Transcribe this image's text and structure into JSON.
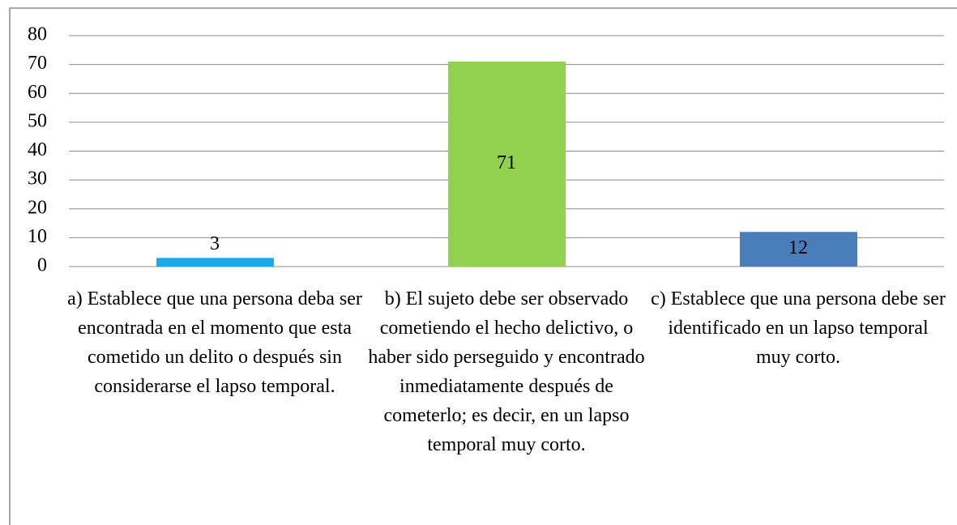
{
  "chart_data": {
    "type": "bar",
    "categories": [
      "a) Establece que una persona deba ser encontrada en el momento que esta cometido un delito o después sin considerarse el lapso temporal.",
      "b) El sujeto debe ser observado cometiendo el hecho delictivo, o haber sido perseguido y encontrado inmediatamente después de cometerlo; es decir, en un lapso temporal muy corto.",
      "c) Establece que una persona debe ser identificado en un lapso temporal muy corto."
    ],
    "values": [
      3,
      71,
      12
    ],
    "colors": [
      "#1aaae8",
      "#92d050",
      "#4a7ebb"
    ],
    "ylim": [
      0,
      80
    ],
    "yticks": [
      0,
      10,
      20,
      30,
      40,
      50,
      60,
      70,
      80
    ],
    "grid": true
  }
}
